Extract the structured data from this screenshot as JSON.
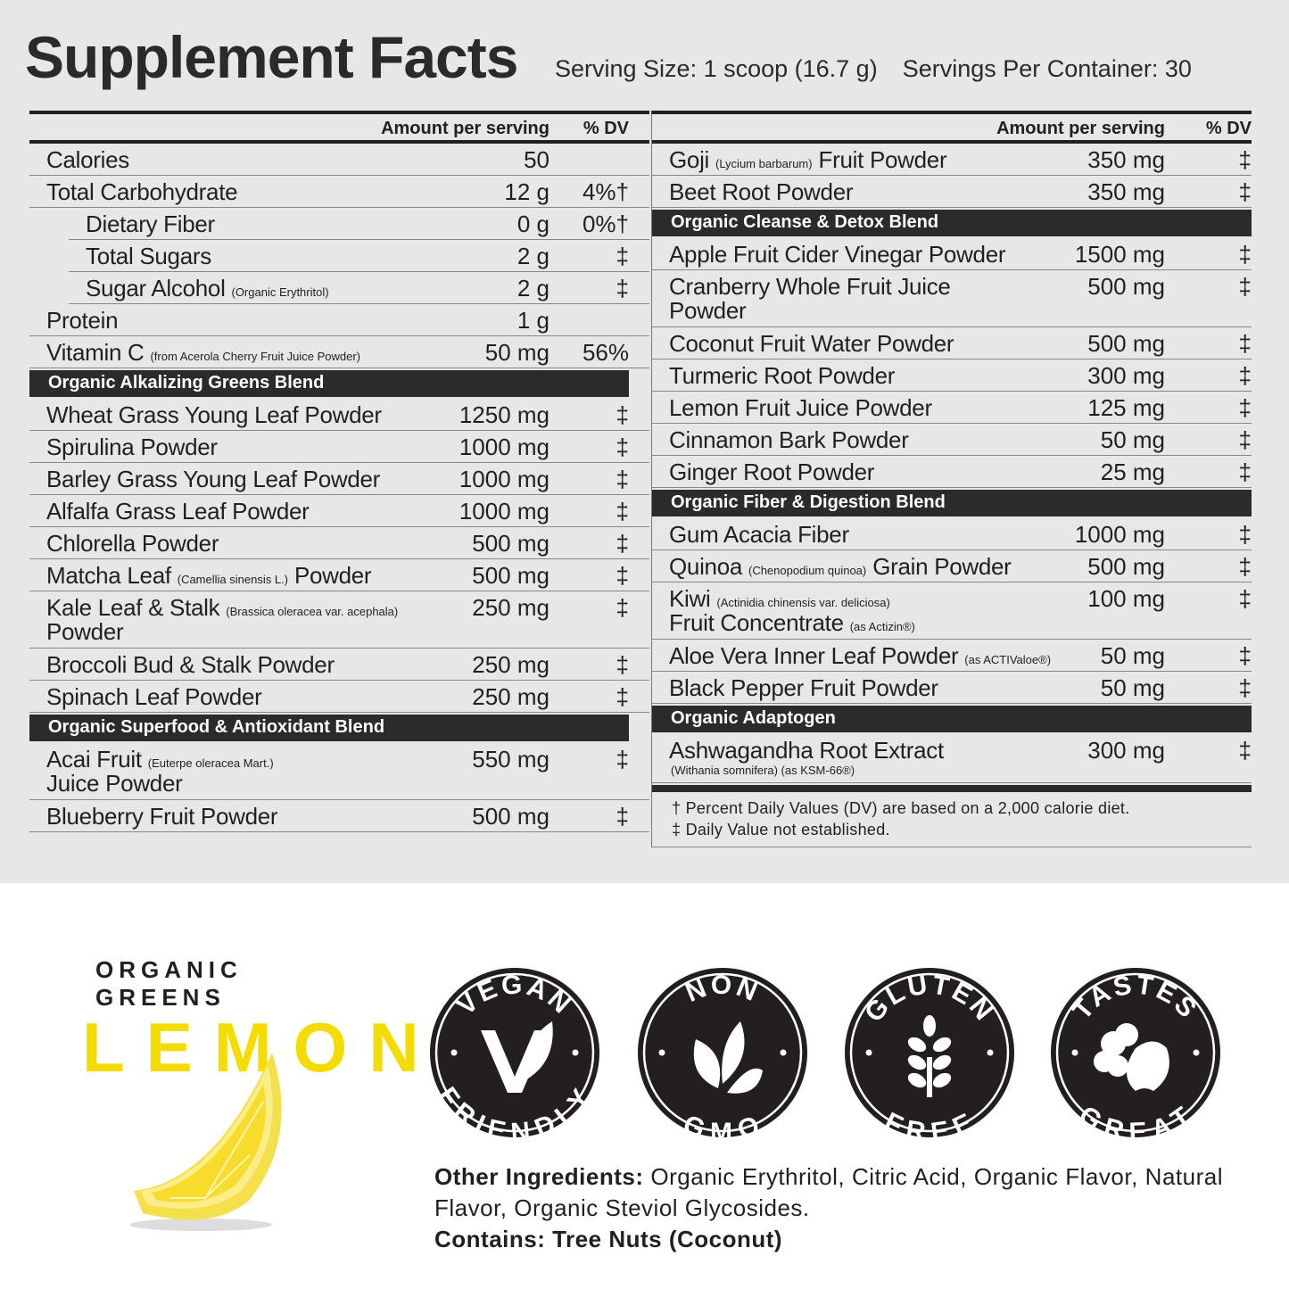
{
  "title": "Supplement Facts",
  "serving_size": "Serving Size: 1 scoop (16.7 g)",
  "servings_per_container": "Servings Per Container: 30",
  "header": {
    "amount": "Amount per serving",
    "dv": "% DV"
  },
  "left": [
    {
      "type": "row",
      "name": "Calories",
      "amount": "50",
      "dv": ""
    },
    {
      "type": "row",
      "name": "Total Carbohydrate",
      "amount": "12 g",
      "dv": "4%†"
    },
    {
      "type": "row",
      "indent": true,
      "name": "Dietary Fiber",
      "amount": "0 g",
      "dv": "0%†"
    },
    {
      "type": "row",
      "indent": true,
      "name": "Total Sugars",
      "amount": "2 g",
      "dv": "‡"
    },
    {
      "type": "row",
      "indent": true,
      "name": "Sugar Alcohol",
      "note": "(Organic Erythritol)",
      "amount": "2 g",
      "dv": "‡"
    },
    {
      "type": "row",
      "name": "Protein",
      "amount": "1 g",
      "dv": ""
    },
    {
      "type": "row",
      "name": "Vitamin C",
      "note": "(from Acerola Cherry Fruit Juice Powder)",
      "amount": "50 mg",
      "dv": "56%"
    },
    {
      "type": "blend",
      "name": "Organic Alkalizing Greens Blend"
    },
    {
      "type": "row",
      "name": "Wheat Grass Young Leaf Powder",
      "amount": "1250 mg",
      "dv": "‡"
    },
    {
      "type": "row",
      "name": "Spirulina Powder",
      "amount": "1000 mg",
      "dv": "‡"
    },
    {
      "type": "row",
      "name": "Barley Grass Young Leaf Powder",
      "amount": "1000 mg",
      "dv": "‡"
    },
    {
      "type": "row",
      "name": "Alfalfa Grass Leaf Powder",
      "amount": "1000 mg",
      "dv": "‡"
    },
    {
      "type": "row",
      "name": "Chlorella Powder",
      "amount": "500 mg",
      "dv": "‡"
    },
    {
      "type": "row",
      "name": "Matcha Leaf",
      "note": "(Camellia sinensis L.)",
      "after": "Powder",
      "amount": "500 mg",
      "dv": "‡"
    },
    {
      "type": "row",
      "name": "Kale Leaf & Stalk",
      "note": "(Brassica oleracea var. acephala)",
      "line2": "Powder",
      "amount": "250 mg",
      "dv": "‡"
    },
    {
      "type": "row",
      "name": "Broccoli Bud & Stalk Powder",
      "amount": "250 mg",
      "dv": "‡"
    },
    {
      "type": "row",
      "name": "Spinach Leaf Powder",
      "amount": "250 mg",
      "dv": "‡"
    },
    {
      "type": "blend",
      "name": "Organic Superfood & Antioxidant Blend"
    },
    {
      "type": "row",
      "name": "Acai Fruit",
      "note": "(Euterpe oleracea Mart.)",
      "line2": "Juice Powder",
      "amount": "550 mg",
      "dv": "‡"
    },
    {
      "type": "row",
      "name": "Blueberry Fruit Powder",
      "amount": "500 mg",
      "dv": "‡"
    }
  ],
  "right": [
    {
      "type": "row",
      "name": "Goji",
      "note": "(Lycium barbarum)",
      "after": "Fruit Powder",
      "amount": "350 mg",
      "dv": "‡"
    },
    {
      "type": "row",
      "name": "Beet Root Powder",
      "amount": "350 mg",
      "dv": "‡"
    },
    {
      "type": "blend",
      "name": "Organic Cleanse & Detox Blend"
    },
    {
      "type": "row",
      "name": "Apple Fruit Cider Vinegar Powder",
      "amount": "1500 mg",
      "dv": "‡"
    },
    {
      "type": "row",
      "name": "Cranberry Whole Fruit Juice",
      "line2": "Powder",
      "amount": "500 mg",
      "dv": "‡"
    },
    {
      "type": "row",
      "name": "Coconut Fruit Water Powder",
      "amount": "500 mg",
      "dv": "‡"
    },
    {
      "type": "row",
      "name": "Turmeric Root Powder",
      "amount": "300 mg",
      "dv": "‡"
    },
    {
      "type": "row",
      "name": "Lemon Fruit Juice Powder",
      "amount": "125 mg",
      "dv": "‡"
    },
    {
      "type": "row",
      "name": "Cinnamon Bark Powder",
      "amount": "50 mg",
      "dv": "‡"
    },
    {
      "type": "row",
      "name": "Ginger Root Powder",
      "amount": "25 mg",
      "dv": "‡"
    },
    {
      "type": "blend",
      "name": "Organic Fiber & Digestion Blend"
    },
    {
      "type": "row",
      "name": "Gum Acacia Fiber",
      "amount": "1000 mg",
      "dv": "‡"
    },
    {
      "type": "row",
      "name": "Quinoa",
      "note": "(Chenopodium quinoa)",
      "after": "Grain Powder",
      "amount": "500 mg",
      "dv": "‡"
    },
    {
      "type": "row",
      "name": "Kiwi",
      "note": "(Actinidia chinensis var. deliciosa)",
      "line2": "Fruit Concentrate",
      "line2note": "(as Actizin®)",
      "amount": "100 mg",
      "dv": "‡"
    },
    {
      "type": "row",
      "name": "Aloe Vera Inner Leaf Powder",
      "note": "(as ACTIValoe®)",
      "amount": "50 mg",
      "dv": "‡"
    },
    {
      "type": "row",
      "name": "Black Pepper Fruit Powder",
      "amount": "50 mg",
      "dv": "‡"
    },
    {
      "type": "blend",
      "name": "Organic Adaptogen"
    },
    {
      "type": "row",
      "name": "Ashwagandha Root Extract",
      "sub": "(Withania somnifera) (as KSM-66®)",
      "amount": "300 mg",
      "dv": "‡"
    }
  ],
  "footnotes": [
    "† Percent Daily Values (DV) are based on a 2,000 calorie diet.",
    "‡ Daily Value not established."
  ],
  "brand": {
    "line1": "ORGANIC GREENS",
    "flavor": "LEMON",
    "flavor_color": "#f5dc00"
  },
  "badges": [
    {
      "top": "VEGAN",
      "bottom": "FRIENDLY",
      "icon": "v-leaf-icon"
    },
    {
      "top": "NON",
      "bottom": "GMO",
      "icon": "leaves-icon"
    },
    {
      "top": "GLUTEN",
      "bottom": "FREE",
      "icon": "wheat-icon"
    },
    {
      "top": "TASTES",
      "bottom": "GREAT",
      "icon": "fruit-veg-icon"
    }
  ],
  "other": {
    "label": "Other Ingredients:",
    "text": " Organic Erythritol, Citric Acid, Organic Flavor, Natural Flavor, Organic Steviol Glycosides.",
    "contains": "Contains: Tree Nuts (Coconut)"
  }
}
